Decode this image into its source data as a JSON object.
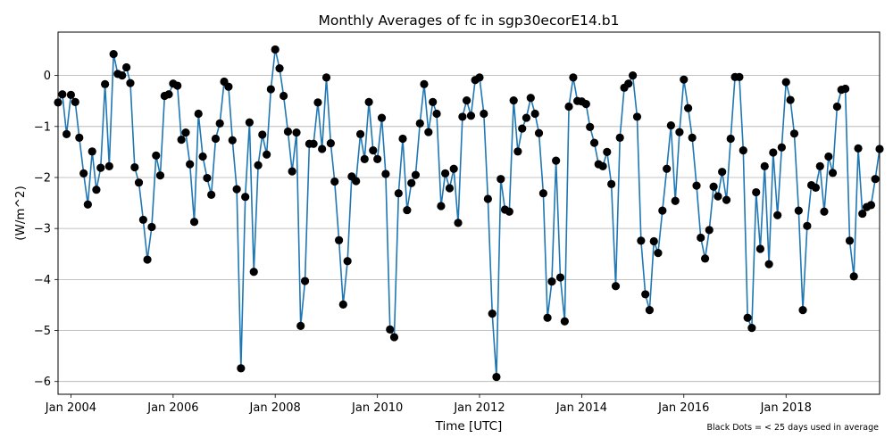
{
  "chart_data": {
    "type": "line",
    "title": "Monthly Averages of fc in sgp30ecorE14.b1",
    "xlabel": "Time [UTC]",
    "ylabel": "(W/m^2)",
    "footnote": "Black Dots = < 25 days used in average",
    "ylim": [
      -6.25,
      0.85
    ],
    "xlim": [
      "2003-10-01",
      "2019-11-01"
    ],
    "x_ticks": [
      "Jan 2004",
      "Jan 2006",
      "Jan 2008",
      "Jan 2010",
      "Jan 2012",
      "Jan 2014",
      "Jan 2016",
      "Jan 2018"
    ],
    "y_ticks": [
      0,
      -1,
      -2,
      -3,
      -4,
      -5,
      -6
    ],
    "grid": "horizontal",
    "line_color": "#1f77b4",
    "marker_color": "#000000",
    "series": [
      {
        "x": [
          "2003-10-01",
          "2003-11-01",
          "2003-12-01",
          "2004-01-01",
          "2004-02-01",
          "2004-03-01",
          "2004-04-01",
          "2004-05-01",
          "2004-06-01",
          "2004-07-01",
          "2004-08-01",
          "2004-09-01",
          "2004-10-01",
          "2004-11-01",
          "2004-12-01",
          "2005-01-01",
          "2005-02-01",
          "2005-03-01",
          "2005-04-01",
          "2005-05-01",
          "2005-06-01",
          "2005-07-01",
          "2005-08-01",
          "2005-09-01",
          "2005-10-01",
          "2005-11-01",
          "2005-12-01",
          "2006-01-01",
          "2006-02-01",
          "2006-03-01",
          "2006-04-01",
          "2006-05-01",
          "2006-06-01",
          "2006-07-01",
          "2006-08-01",
          "2006-09-01",
          "2006-10-01",
          "2006-11-01",
          "2006-12-01",
          "2007-01-01",
          "2007-02-01",
          "2007-03-01",
          "2007-04-01",
          "2007-05-01",
          "2007-06-01",
          "2007-07-01",
          "2007-08-01",
          "2007-09-01",
          "2007-10-01",
          "2007-11-01",
          "2007-12-01",
          "2008-01-01",
          "2008-02-01",
          "2008-03-01",
          "2008-04-01",
          "2008-05-01",
          "2008-06-01",
          "2008-07-01",
          "2008-08-01",
          "2008-09-01",
          "2008-10-01",
          "2008-11-01",
          "2008-12-01",
          "2009-01-01",
          "2009-02-01",
          "2009-03-01",
          "2009-04-01",
          "2009-05-01",
          "2009-06-01",
          "2009-07-01",
          "2009-08-01",
          "2009-09-01",
          "2009-10-01",
          "2009-11-01",
          "2009-12-01",
          "2010-01-01",
          "2010-02-01",
          "2010-03-01",
          "2010-04-01",
          "2010-05-01",
          "2010-06-01",
          "2010-07-01",
          "2010-08-01",
          "2010-09-01",
          "2010-10-01",
          "2010-11-01",
          "2010-12-01",
          "2011-01-01",
          "2011-02-01",
          "2011-03-01",
          "2011-04-01",
          "2011-05-01",
          "2011-06-01",
          "2011-07-01",
          "2011-08-01",
          "2011-09-01",
          "2011-10-01",
          "2011-11-01",
          "2011-12-01",
          "2012-01-01",
          "2012-02-01",
          "2012-03-01",
          "2012-04-01",
          "2012-05-01",
          "2012-06-01",
          "2012-07-01",
          "2012-08-01",
          "2012-09-01",
          "2012-10-01",
          "2012-11-01",
          "2012-12-01",
          "2013-01-01",
          "2013-02-01",
          "2013-03-01",
          "2013-04-01",
          "2013-05-01",
          "2013-06-01",
          "2013-07-01",
          "2013-08-01",
          "2013-09-01",
          "2013-10-01",
          "2013-11-01",
          "2013-12-01",
          "2014-01-01",
          "2014-02-01",
          "2014-03-01",
          "2014-04-01",
          "2014-05-01",
          "2014-06-01",
          "2014-07-01",
          "2014-08-01",
          "2014-09-01",
          "2014-10-01",
          "2014-11-01",
          "2014-12-01",
          "2015-01-01",
          "2015-02-01",
          "2015-03-01",
          "2015-04-01",
          "2015-05-01",
          "2015-06-01",
          "2015-07-01",
          "2015-08-01",
          "2015-09-01",
          "2015-10-01",
          "2015-11-01",
          "2015-12-01",
          "2016-01-01",
          "2016-02-01",
          "2016-03-01",
          "2016-04-01",
          "2016-05-01",
          "2016-06-01",
          "2016-07-01",
          "2016-08-01",
          "2016-09-01",
          "2016-10-01",
          "2016-11-01",
          "2016-12-01",
          "2017-01-01",
          "2017-02-01",
          "2017-03-01",
          "2017-04-01",
          "2017-05-01",
          "2017-06-01",
          "2017-07-01",
          "2017-08-01",
          "2017-09-01",
          "2017-10-01",
          "2017-11-01",
          "2017-12-01",
          "2018-01-01",
          "2018-02-01",
          "2018-03-01",
          "2018-04-01",
          "2018-05-01",
          "2018-06-01",
          "2018-07-01",
          "2018-08-01",
          "2018-09-01",
          "2018-10-01",
          "2018-11-01",
          "2018-12-01",
          "2019-01-01",
          "2019-02-01",
          "2019-03-01",
          "2019-04-01",
          "2019-05-01",
          "2019-06-01",
          "2019-07-01",
          "2019-08-01",
          "2019-09-01",
          "2019-10-01",
          "2019-11-01"
        ],
        "y": [
          -0.53,
          -0.37,
          -1.15,
          -0.38,
          -0.52,
          -1.22,
          -1.92,
          -2.53,
          -1.49,
          -2.24,
          -1.81,
          -0.17,
          -1.78,
          0.42,
          0.03,
          0.0,
          0.16,
          -0.15,
          -1.8,
          -2.1,
          -2.83,
          -3.61,
          -2.97,
          -1.57,
          -1.96,
          -0.4,
          -0.37,
          -0.16,
          -0.2,
          -1.26,
          -1.12,
          -1.74,
          -2.87,
          -0.75,
          -1.59,
          -2.01,
          -2.34,
          -1.24,
          -0.94,
          -0.12,
          -0.22,
          -1.27,
          -2.23,
          -5.74,
          -2.38,
          -0.92,
          -3.85,
          -1.76,
          -1.16,
          -1.55,
          -0.27,
          0.51,
          0.14,
          -0.4,
          -1.1,
          -1.88,
          -1.12,
          -4.91,
          -4.03,
          -1.34,
          -1.34,
          -0.53,
          -1.44,
          -0.04,
          -1.33,
          -2.08,
          -3.23,
          -4.49,
          -3.64,
          -1.98,
          -2.07,
          -1.15,
          -1.64,
          -0.52,
          -1.47,
          -1.64,
          -0.83,
          -1.93,
          -4.98,
          -5.13,
          -2.31,
          -1.24,
          -2.64,
          -2.11,
          -1.95,
          -0.94,
          -0.17,
          -1.11,
          -0.52,
          -0.75,
          -2.56,
          -1.92,
          -2.21,
          -1.83,
          -2.89,
          -0.81,
          -0.49,
          -0.79,
          -0.09,
          -0.04,
          -0.75,
          -2.42,
          -4.67,
          -5.91,
          -2.03,
          -2.63,
          -2.67,
          -0.49,
          -1.49,
          -1.04,
          -0.83,
          -0.44,
          -0.75,
          -1.13,
          -2.31,
          -4.75,
          -4.04,
          -1.67,
          -3.96,
          -4.82,
          -0.61,
          -0.04,
          -0.5,
          -0.51,
          -0.56,
          -1.01,
          -1.32,
          -1.74,
          -1.78,
          -1.5,
          -2.13,
          -4.13,
          -1.22,
          -0.24,
          -0.16,
          0.0,
          -0.81,
          -3.24,
          -4.29,
          -4.6,
          -3.25,
          -3.48,
          -2.65,
          -1.83,
          -0.98,
          -2.46,
          -1.11,
          -0.08,
          -0.64,
          -1.22,
          -2.16,
          -3.18,
          -3.59,
          -3.03,
          -2.18,
          -2.37,
          -1.89,
          -2.44,
          -1.24,
          -0.03,
          -0.03,
          -1.47,
          -4.75,
          -4.95,
          -2.29,
          -3.4,
          -1.78,
          -3.7,
          -1.51,
          -2.74,
          -1.41,
          -0.13,
          -0.48,
          -1.14,
          -2.65,
          -4.6,
          -2.95,
          -2.15,
          -2.2,
          -1.78,
          -2.67,
          -1.59,
          -1.91,
          -0.61,
          -0.28,
          -0.26,
          -3.24,
          -3.94,
          -1.43,
          -2.71,
          -2.58,
          -2.54,
          -2.03,
          -1.44
        ]
      }
    ]
  }
}
